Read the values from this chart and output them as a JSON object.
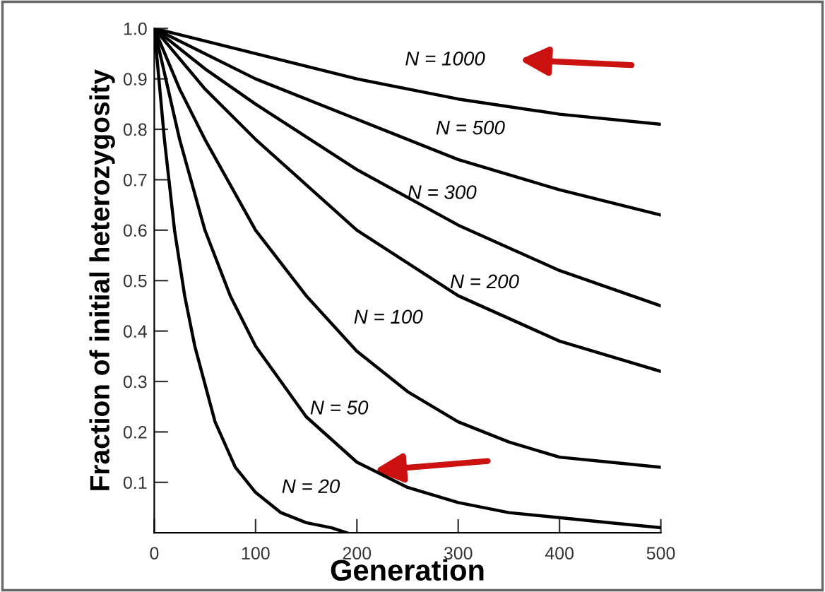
{
  "chart_data": {
    "type": "line",
    "xlabel": "Generation",
    "ylabel": "Fraction of initial heterozygosity",
    "xlim": [
      0,
      500
    ],
    "ylim": [
      0,
      1.0
    ],
    "xticks": [
      0,
      100,
      200,
      300,
      400,
      500
    ],
    "yticks": [
      {
        "value": 0.1,
        "label": "0.1"
      },
      {
        "value": 0.2,
        "label": "0.2"
      },
      {
        "value": 0.3,
        "label": "0.3"
      },
      {
        "value": 0.4,
        "label": "0.4"
      },
      {
        "value": 0.5,
        "label": "0.5"
      },
      {
        "value": 0.6,
        "label": "0.6"
      },
      {
        "value": 0.7,
        "label": "0.7"
      },
      {
        "value": 0.8,
        "label": "0.8"
      },
      {
        "value": 0.9,
        "label": "0.9"
      },
      {
        "value": 1.0,
        "label": "1.0"
      }
    ],
    "grid": false,
    "legend": false,
    "marker": "none",
    "line_style": "solid",
    "series": [
      {
        "name": "N = 1000",
        "color": "#000000",
        "x": [
          0,
          100,
          200,
          300,
          400,
          500
        ],
        "values": [
          1.0,
          0.95,
          0.9,
          0.86,
          0.83,
          0.81
        ]
      },
      {
        "name": "N = 500",
        "color": "#000000",
        "x": [
          0,
          100,
          200,
          300,
          400,
          500
        ],
        "values": [
          1.0,
          0.9,
          0.82,
          0.74,
          0.68,
          0.63
        ]
      },
      {
        "name": "N = 300",
        "color": "#000000",
        "x": [
          0,
          50,
          100,
          200,
          300,
          400,
          500
        ],
        "values": [
          1.0,
          0.92,
          0.85,
          0.72,
          0.61,
          0.52,
          0.45
        ]
      },
      {
        "name": "N = 200",
        "color": "#000000",
        "x": [
          0,
          50,
          100,
          150,
          200,
          300,
          400,
          500
        ],
        "values": [
          1.0,
          0.88,
          0.78,
          0.69,
          0.6,
          0.47,
          0.38,
          0.32
        ]
      },
      {
        "name": "N = 100",
        "color": "#000000",
        "x": [
          0,
          25,
          50,
          100,
          150,
          200,
          250,
          300,
          350,
          400,
          450,
          500
        ],
        "values": [
          1.0,
          0.88,
          0.78,
          0.6,
          0.47,
          0.36,
          0.28,
          0.22,
          0.18,
          0.15,
          0.14,
          0.13
        ]
      },
      {
        "name": "N = 50",
        "color": "#000000",
        "x": [
          0,
          25,
          50,
          75,
          100,
          150,
          200,
          250,
          300,
          350,
          400,
          450,
          500
        ],
        "values": [
          1.0,
          0.78,
          0.6,
          0.47,
          0.37,
          0.23,
          0.14,
          0.09,
          0.06,
          0.04,
          0.03,
          0.02,
          0.01
        ]
      },
      {
        "name": "N = 20",
        "color": "#000000",
        "x": [
          0,
          10,
          20,
          30,
          40,
          60,
          80,
          100,
          125,
          150,
          175,
          190
        ],
        "values": [
          1.0,
          0.78,
          0.6,
          0.47,
          0.37,
          0.22,
          0.13,
          0.08,
          0.04,
          0.02,
          0.01,
          0.0
        ]
      }
    ]
  }
}
